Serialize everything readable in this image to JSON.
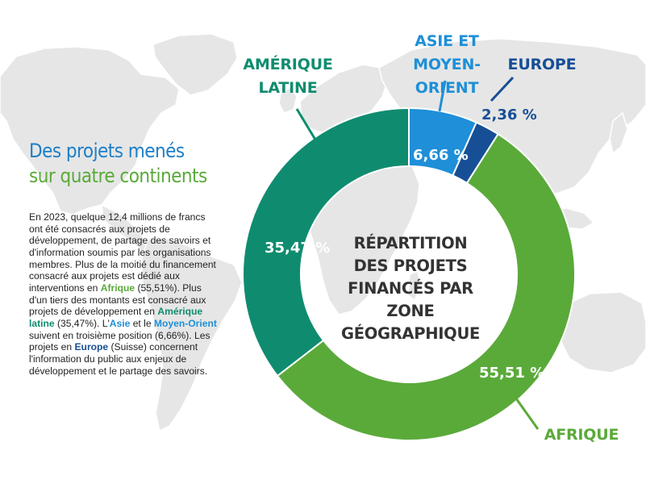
{
  "title": {
    "line1": "Des projets menés",
    "line2": "sur quatre continents"
  },
  "body": {
    "p1": "En 2023, quelque 12,4 millions de francs ont été consacrés aux projets de développement, de partage des savoirs et d'information soumis par les organisations membres. Plus de la moitié du financement consacré aux projets est dédié aux interventions en ",
    "w_afrique": "Afrique",
    "p2": " (55,51%). Plus d'un tiers des montants est consacré aux projets de développement en ",
    "w_amerique": "Amérique latine",
    "p3": " (35,47%). L'",
    "w_asie": "Asie",
    "p4": " et le ",
    "w_moyen": "Moyen-Orient",
    "p5": " suivent en troisième position (6,66%). Les projets en ",
    "w_europe": "Europe",
    "p6": " (Suisse) concernent l'information du public aux enjeux de développement et le partage des savoirs."
  },
  "chart_data": {
    "type": "pie",
    "donut": true,
    "title": [
      "RÉPARTITION",
      "DES PROJETS",
      "FINANCÉS PAR ZONE",
      "GÉOGRAPHIQUE"
    ],
    "slices": [
      {
        "name": [
          "AFRIQUE"
        ],
        "value": 55.51,
        "label": "55,51 %",
        "color": "#5aaa3a"
      },
      {
        "name": [
          "AMÉRIQUE",
          "LATINE"
        ],
        "value": 35.47,
        "label": "35,47 %",
        "color": "#0f8c6f"
      },
      {
        "name": [
          "ASIE ET",
          "MOYEN-ORIENT"
        ],
        "value": 6.66,
        "label": "6,66 %",
        "color": "#1e8fd8"
      },
      {
        "name": [
          "EUROPE"
        ],
        "value": 2.36,
        "label": "2,36 %",
        "color": "#174f96"
      }
    ]
  }
}
